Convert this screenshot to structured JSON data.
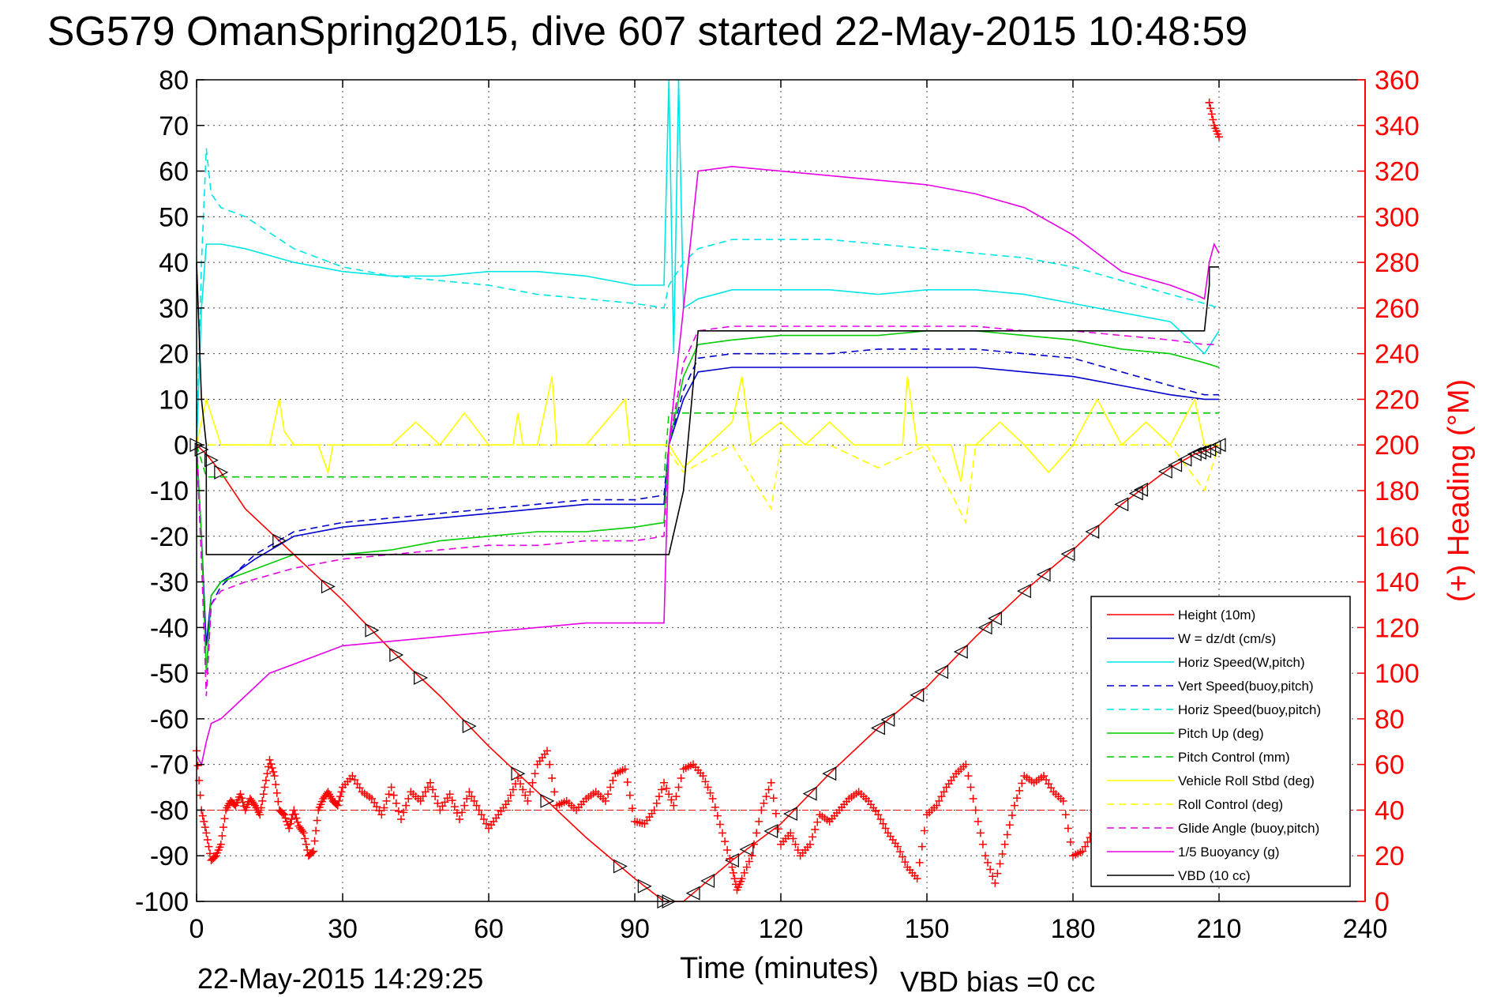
{
  "chart_data": {
    "type": "line",
    "title": "SG579 OmanSpring2015, dive 607 started 22-May-2015 10:48:59",
    "xlabel": "Time (minutes)",
    "ylabel": "",
    "y2label": "(+) Heading (°M)",
    "footer_left": "22-May-2015 14:29:25",
    "footer_right": "VBD bias =0 cc",
    "xlim": [
      0,
      240
    ],
    "ylim": [
      -100,
      80
    ],
    "y2lim": [
      0,
      360
    ],
    "x_ticks": [
      "0",
      "30",
      "60",
      "90",
      "120",
      "150",
      "180",
      "210",
      "240"
    ],
    "y_ticks": [
      "80",
      "70",
      "60",
      "50",
      "40",
      "30",
      "20",
      "10",
      "0",
      "-10",
      "-20",
      "-30",
      "-40",
      "-50",
      "-60",
      "-70",
      "-80",
      "-90",
      "-100"
    ],
    "y2_ticks": [
      "360",
      "340",
      "320",
      "300",
      "280",
      "260",
      "240",
      "220",
      "200",
      "180",
      "160",
      "140",
      "120",
      "100",
      "80",
      "60",
      "40",
      "20",
      "0"
    ],
    "grid": true,
    "legend_position": "bottom-right",
    "colors": {
      "red": "#ff0000",
      "blue": "#0000cc",
      "cyan": "#00e5e5",
      "green": "#00cc00",
      "yellow": "#ffff00",
      "magenta": "#e600e6",
      "black": "#000000"
    },
    "series": [
      {
        "name": "Height (10m)",
        "color": "red",
        "dash": "solid",
        "x": [
          0,
          2,
          5,
          10,
          20,
          30,
          40,
          50,
          60,
          70,
          80,
          90,
          96,
          100,
          110,
          120,
          130,
          140,
          150,
          160,
          170,
          180,
          190,
          200,
          205,
          208,
          210
        ],
        "y": [
          0,
          -2,
          -6,
          -14,
          -24,
          -34,
          -45,
          -55,
          -66,
          -76,
          -86,
          -95,
          -100,
          -100,
          -91,
          -83,
          -72,
          -62,
          -53,
          -42,
          -32,
          -23,
          -13,
          -5,
          -2,
          -1,
          0
        ]
      },
      {
        "name": "W = dz/dt (cm/s)",
        "color": "blue",
        "dash": "solid",
        "x": [
          0,
          1,
          2,
          3,
          5,
          8,
          12,
          20,
          30,
          40,
          50,
          60,
          70,
          80,
          90,
          96,
          97,
          100,
          103,
          110,
          120,
          130,
          140,
          150,
          160,
          170,
          180,
          190,
          200,
          207,
          210
        ],
        "y": [
          0,
          -20,
          -44,
          -33,
          -30,
          -28,
          -25,
          -20,
          -18,
          -17,
          -16,
          -15,
          -14,
          -13,
          -13,
          -13,
          0,
          10,
          16,
          17,
          17,
          17,
          17,
          17,
          17,
          16,
          15,
          13,
          11,
          10,
          10
        ]
      },
      {
        "name": "Horiz Speed(W,pitch)",
        "color": "cyan",
        "dash": "solid",
        "x": [
          0,
          1,
          2,
          5,
          10,
          20,
          30,
          40,
          50,
          60,
          70,
          80,
          90,
          96,
          97,
          98,
          99,
          100,
          103,
          110,
          120,
          130,
          140,
          150,
          160,
          170,
          180,
          190,
          200,
          207,
          210
        ],
        "y": [
          0,
          30,
          44,
          44,
          43,
          40,
          38,
          37,
          37,
          38,
          38,
          37,
          35,
          35,
          80,
          20,
          80,
          30,
          32,
          34,
          34,
          34,
          33,
          34,
          34,
          33,
          31,
          29,
          27,
          20,
          25
        ]
      },
      {
        "name": "Vert Speed(buoy,pitch)",
        "color": "blue",
        "dash": "dashed",
        "x": [
          0,
          1,
          2,
          3,
          5,
          8,
          12,
          20,
          30,
          40,
          50,
          60,
          70,
          80,
          90,
          96,
          97,
          100,
          103,
          110,
          120,
          130,
          140,
          150,
          160,
          170,
          180,
          190,
          200,
          207,
          210
        ],
        "y": [
          0,
          -25,
          -50,
          -35,
          -31,
          -28,
          -24,
          -19,
          -17,
          -16,
          -15,
          -14,
          -13,
          -12,
          -12,
          -11,
          0,
          12,
          19,
          20,
          20,
          20,
          21,
          21,
          21,
          20,
          19,
          16,
          13,
          11,
          11
        ]
      },
      {
        "name": "Horiz Speed(buoy,pitch)",
        "color": "cyan",
        "dash": "dashed",
        "x": [
          0,
          1,
          2,
          3,
          5,
          10,
          20,
          30,
          40,
          50,
          60,
          70,
          80,
          90,
          96,
          97,
          100,
          103,
          110,
          120,
          130,
          140,
          150,
          160,
          170,
          180,
          190,
          200,
          207,
          210
        ],
        "y": [
          0,
          40,
          65,
          55,
          52,
          50,
          43,
          39,
          37,
          36,
          35,
          33,
          32,
          31,
          30,
          35,
          40,
          43,
          45,
          45,
          45,
          44,
          43,
          42,
          41,
          39,
          36,
          33,
          31,
          30
        ]
      },
      {
        "name": "Pitch Up (deg)",
        "color": "green",
        "dash": "solid",
        "x": [
          0,
          1,
          2,
          3,
          5,
          10,
          20,
          30,
          40,
          50,
          60,
          70,
          80,
          90,
          96,
          97,
          100,
          103,
          110,
          120,
          130,
          140,
          150,
          160,
          170,
          180,
          190,
          200,
          207,
          210
        ],
        "y": [
          0,
          -20,
          -50,
          -33,
          -30,
          -28,
          -24,
          -24,
          -23,
          -21,
          -20,
          -19,
          -19,
          -18,
          -17,
          0,
          15,
          22,
          23,
          24,
          24,
          24,
          25,
          25,
          24,
          23,
          21,
          20,
          18,
          17
        ]
      },
      {
        "name": "Pitch Control (mm)",
        "color": "green",
        "dash": "dashed",
        "x": [
          0,
          2,
          3,
          96,
          97,
          103,
          210
        ],
        "y": [
          0,
          -7,
          -7,
          -7,
          7,
          7,
          7
        ]
      },
      {
        "name": "Vehicle Roll Stbd (deg)",
        "color": "yellow",
        "dash": "solid",
        "x": [
          0,
          2,
          5,
          10,
          15,
          17,
          18,
          20,
          25,
          27,
          28,
          30,
          40,
          45,
          50,
          55,
          60,
          65,
          66,
          67,
          70,
          73,
          74,
          75,
          80,
          88,
          89,
          90,
          96,
          97,
          100,
          105,
          110,
          112,
          114,
          120,
          125,
          130,
          135,
          140,
          145,
          146,
          148,
          150,
          155,
          157,
          158,
          160,
          165,
          170,
          175,
          180,
          185,
          190,
          195,
          200,
          205,
          207,
          210
        ],
        "y": [
          0,
          10,
          0,
          0,
          0,
          10,
          3,
          0,
          0,
          -6,
          0,
          0,
          0,
          5,
          0,
          7,
          0,
          0,
          7,
          0,
          0,
          15,
          0,
          0,
          0,
          10,
          0,
          0,
          0,
          0,
          -5,
          0,
          5,
          15,
          0,
          5,
          0,
          5,
          0,
          0,
          0,
          15,
          0,
          0,
          0,
          -8,
          0,
          0,
          5,
          0,
          -6,
          0,
          10,
          0,
          5,
          0,
          10,
          0,
          0
        ]
      },
      {
        "name": "Roll Control (deg)",
        "color": "yellow",
        "dash": "dashed",
        "x": [
          0,
          20,
          60,
          96,
          100,
          110,
          118,
          120,
          130,
          140,
          150,
          158,
          160,
          170,
          180,
          200,
          207,
          210
        ],
        "y": [
          0,
          0,
          0,
          0,
          -6,
          0,
          -14,
          0,
          0,
          -5,
          0,
          -17,
          0,
          0,
          0,
          0,
          -10,
          0
        ]
      },
      {
        "name": "Glide Angle (buoy,pitch)",
        "color": "magenta",
        "dash": "dashed",
        "x": [
          0,
          1,
          2,
          3,
          5,
          10,
          20,
          30,
          40,
          50,
          60,
          70,
          80,
          90,
          96,
          97,
          100,
          103,
          110,
          120,
          130,
          140,
          150,
          160,
          170,
          180,
          190,
          200,
          207,
          210
        ],
        "y": [
          0,
          -25,
          -55,
          -35,
          -32,
          -30,
          -27,
          -25,
          -24,
          -23,
          -22,
          -22,
          -21,
          -21,
          -20,
          0,
          18,
          25,
          26,
          26,
          26,
          26,
          26,
          26,
          25,
          25,
          24,
          23,
          22,
          22
        ]
      },
      {
        "name": "1/5 Buoyancy (g)",
        "color": "magenta",
        "dash": "solid",
        "x": [
          0,
          1,
          2,
          3,
          5,
          10,
          15,
          20,
          25,
          30,
          40,
          50,
          60,
          70,
          80,
          90,
          96,
          97,
          100,
          103,
          110,
          120,
          130,
          140,
          150,
          160,
          170,
          180,
          185,
          190,
          200,
          205,
          207,
          208,
          209,
          210
        ],
        "y": [
          -68,
          -70,
          -65,
          -61,
          -60,
          -55,
          -50,
          -48,
          -46,
          -44,
          -43,
          -42,
          -41,
          -40,
          -39,
          -39,
          -39,
          0,
          30,
          60,
          61,
          60,
          59,
          58,
          57,
          55,
          52,
          46,
          42,
          38,
          35,
          33,
          32,
          40,
          44,
          42
        ]
      },
      {
        "name": "VBD (10 cc)",
        "color": "black",
        "dash": "solid",
        "x": [
          0,
          1,
          2,
          2,
          96,
          97,
          100,
          103,
          206,
          207,
          208,
          208,
          210
        ],
        "y": [
          40,
          10,
          0,
          -24,
          -24,
          -24,
          -10,
          25,
          25,
          25,
          35,
          39,
          39
        ]
      }
    ],
    "height_markers_x": [
      0,
      1,
      3,
      5,
      17,
      27,
      36,
      41,
      46,
      56,
      66,
      72,
      87,
      92,
      96,
      97,
      102,
      105,
      110,
      113,
      118,
      122,
      126,
      130,
      140,
      142,
      148,
      153,
      157,
      162,
      164,
      170,
      174,
      179,
      184,
      190,
      193,
      194,
      199,
      201,
      203,
      205,
      206,
      207,
      208,
      209,
      210
    ],
    "heading": {
      "name": "Heading",
      "color": "red",
      "marker": "+",
      "reference_line": 40,
      "x": [
        0,
        1,
        2,
        3,
        4,
        5,
        6,
        7,
        8,
        9,
        10,
        11,
        12,
        13,
        14,
        15,
        16,
        17,
        18,
        19,
        20,
        21,
        22,
        23,
        24,
        25,
        26,
        27,
        28,
        29,
        30,
        32,
        34,
        36,
        38,
        40,
        42,
        44,
        46,
        48,
        50,
        52,
        54,
        56,
        58,
        60,
        62,
        64,
        66,
        68,
        70,
        72,
        74,
        76,
        78,
        80,
        82,
        84,
        86,
        88,
        90,
        92,
        94,
        96,
        98,
        100,
        102,
        104,
        106,
        108,
        110,
        111,
        112,
        114,
        116,
        118,
        120,
        122,
        124,
        126,
        128,
        130,
        132,
        134,
        136,
        138,
        140,
        142,
        144,
        146,
        148,
        150,
        152,
        154,
        156,
        158,
        160,
        162,
        164,
        166,
        168,
        170,
        172,
        174,
        176,
        178,
        180,
        182,
        184,
        186,
        188,
        190,
        192,
        194,
        196,
        198,
        200,
        202,
        204,
        206,
        208,
        209,
        210
      ],
      "y": [
        66,
        40,
        30,
        18,
        20,
        25,
        40,
        44,
        42,
        47,
        40,
        45,
        42,
        38,
        50,
        62,
        55,
        40,
        38,
        32,
        40,
        33,
        30,
        20,
        22,
        40,
        45,
        48,
        44,
        42,
        50,
        55,
        48,
        45,
        38,
        50,
        36,
        48,
        44,
        52,
        40,
        47,
        36,
        48,
        40,
        32,
        38,
        44,
        54,
        44,
        60,
        66,
        42,
        44,
        40,
        45,
        48,
        44,
        56,
        58,
        35,
        34,
        40,
        52,
        42,
        58,
        60,
        55,
        45,
        30,
        15,
        5,
        10,
        20,
        40,
        52,
        25,
        30,
        20,
        25,
        38,
        35,
        40,
        45,
        48,
        44,
        38,
        30,
        24,
        15,
        10,
        38,
        42,
        50,
        56,
        60,
        40,
        20,
        8,
        25,
        42,
        55,
        52,
        55,
        48,
        44,
        20,
        22,
        30,
        45,
        38,
        42,
        40,
        45,
        36,
        38,
        40,
        35,
        40,
        48,
        350,
        340,
        335
      ]
    }
  }
}
